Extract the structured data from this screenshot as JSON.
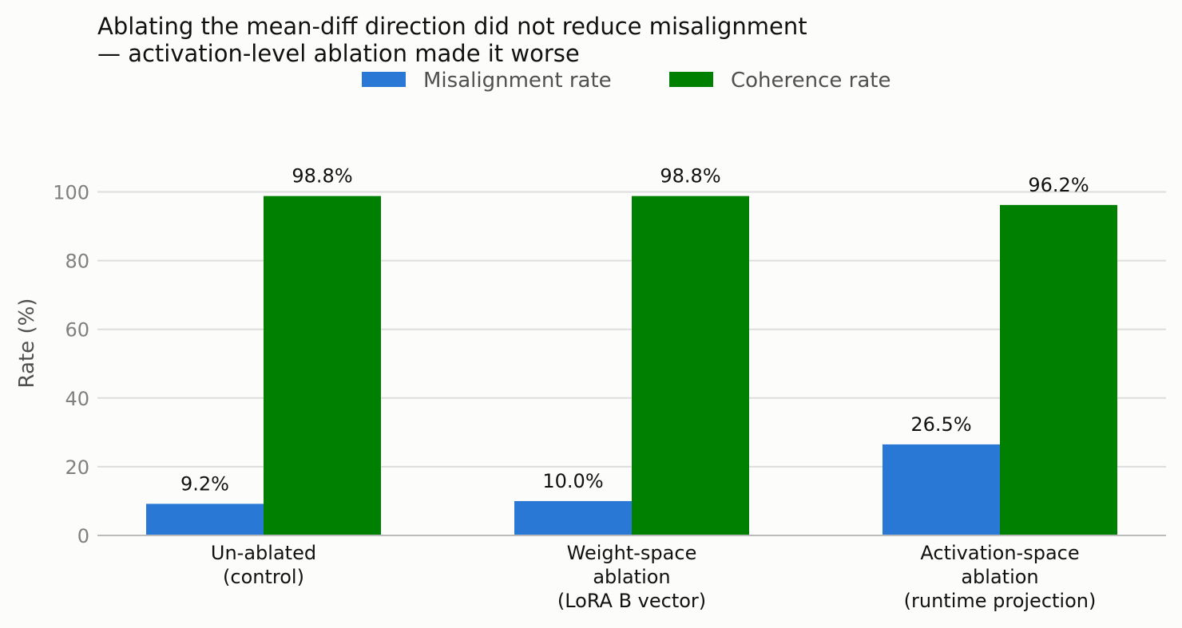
{
  "chart_data": {
    "type": "bar",
    "title": "Ablating the mean-diff direction did not reduce misalignment",
    "subtitle": "— activation-level ablation made it worse",
    "ylabel": "Rate (%)",
    "xlabel": "",
    "ylim": [
      0,
      110
    ],
    "yticks": [
      0,
      20,
      40,
      60,
      80,
      100
    ],
    "grid": "horizontal",
    "legend_placement": "top-center",
    "categories": [
      [
        "Un-ablated",
        "(control)"
      ],
      [
        "Weight-space",
        "ablation",
        "(LoRA B vector)"
      ],
      [
        "Activation-space",
        "ablation",
        "(runtime projection)"
      ]
    ],
    "series": [
      {
        "name": "Misalignment rate",
        "color": "#2a78d6",
        "values": [
          9.2,
          10.0,
          26.5
        ],
        "labels": [
          "9.2%",
          "10.0%",
          "26.5%"
        ]
      },
      {
        "name": "Coherence rate",
        "color": "#008000",
        "values": [
          98.8,
          98.8,
          96.2
        ],
        "labels": [
          "98.8%",
          "98.8%",
          "96.2%"
        ]
      }
    ],
    "colors": {
      "background": "#fcfcfa",
      "grid": "#dddddd",
      "axis": "#bbbbbb"
    }
  }
}
